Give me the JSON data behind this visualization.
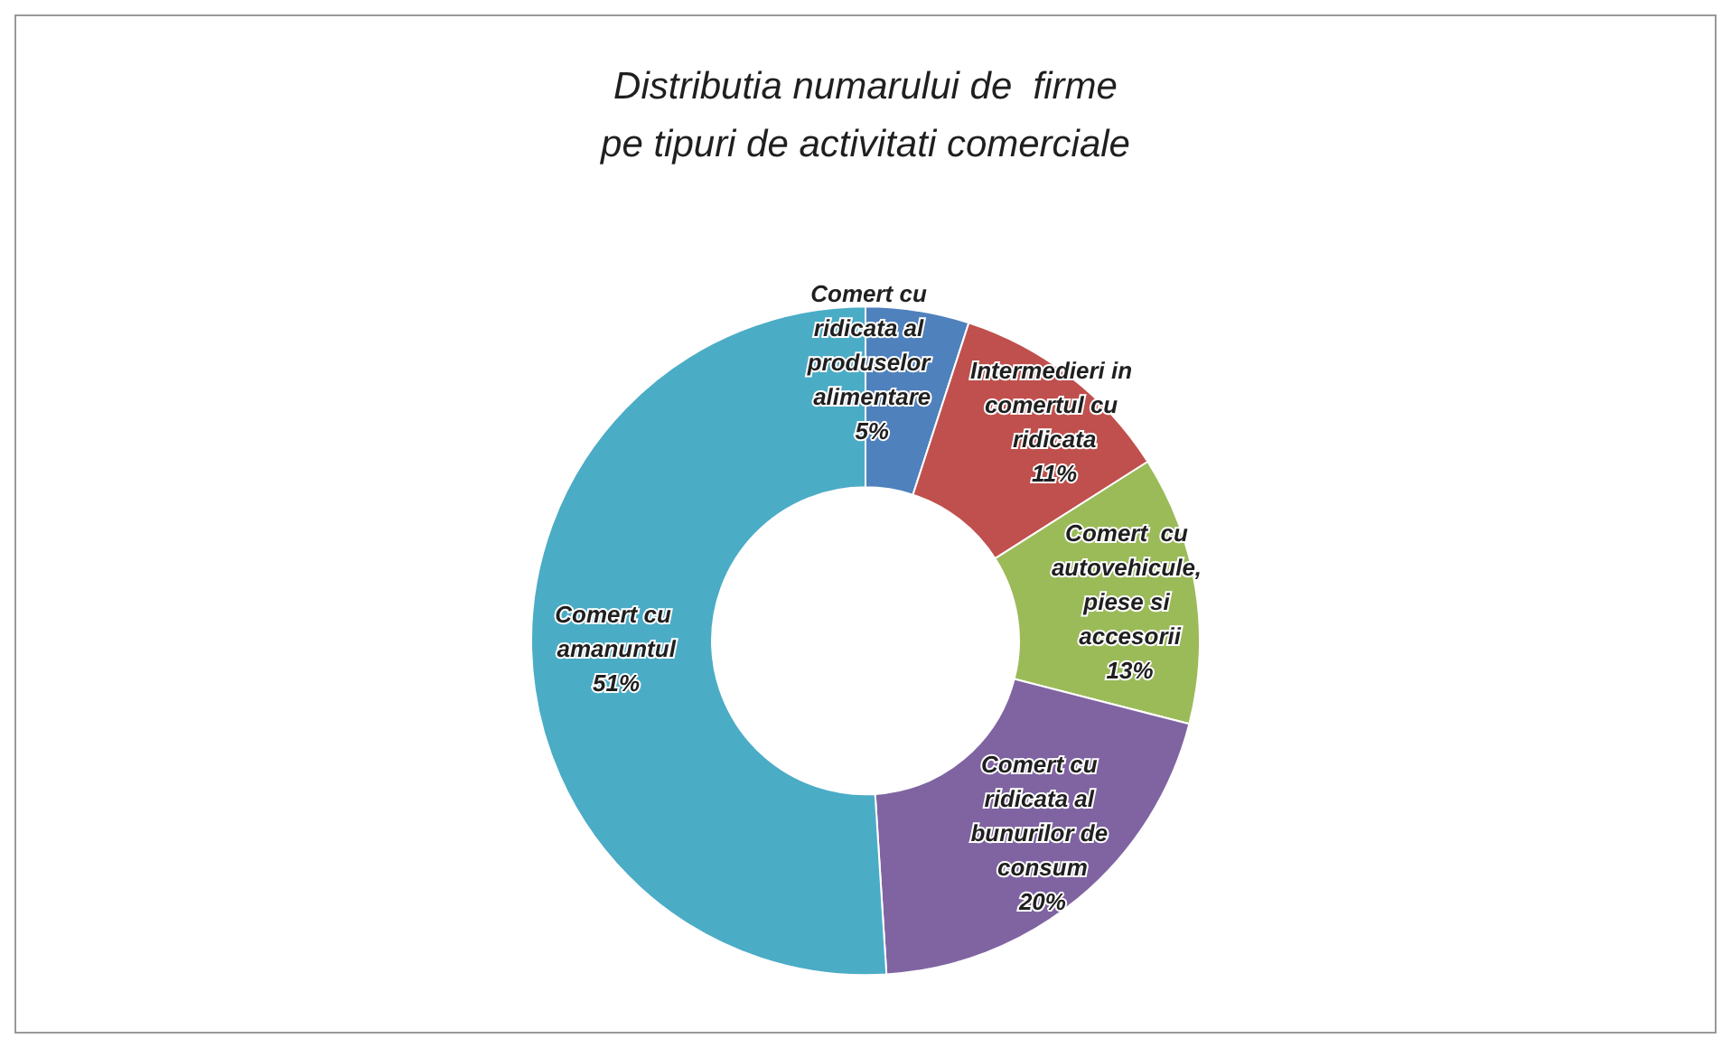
{
  "chart_data": {
    "type": "donut",
    "title": "Distributia numarului de  firme\npe tipuri de activitati comerciale",
    "categories": [
      "Comert cu ridicata al produselor alimentare",
      "Intermedieri in comertul cu ridicata",
      "Comert  cu autovehicule, piese si accesorii",
      "Comert cu ridicata al bunurilor de consum",
      "Comert cu amanuntul"
    ],
    "values": [
      5,
      11,
      13,
      20,
      51
    ],
    "value_labels": [
      "5%",
      "11%",
      "13%",
      "20%",
      "51%"
    ],
    "colors": [
      "#4f81bd",
      "#c0504d",
      "#9bbb59",
      "#8064a2",
      "#4bacc6"
    ],
    "legend": false
  }
}
